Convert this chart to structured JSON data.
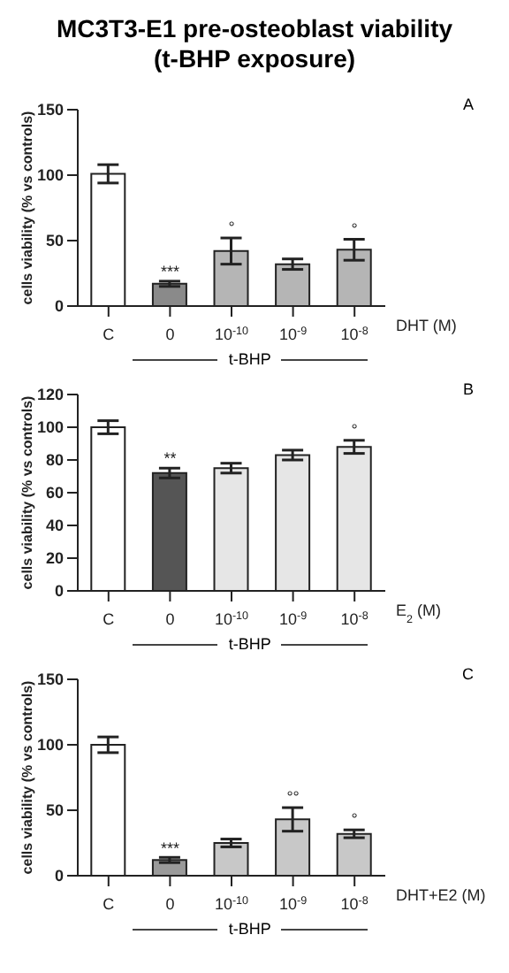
{
  "chart_data": [
    {
      "type": "bar",
      "title": "MC3T3-E1 pre-osteoblast viability (t-BHP exposure)",
      "ylabel": "cells viability (% vs controls)",
      "xlabel": "DHT (M)",
      "categories": [
        "C",
        "0",
        "10$^{-10}$",
        "10$^{-9}$",
        "10$^{-8}$"
      ],
      "values": [
        101,
        17,
        42,
        32,
        43
      ],
      "errors": [
        7,
        2,
        10,
        4,
        8
      ],
      "colors": [
        "#ffffff",
        "#8a8a8a",
        "#b5b5b5",
        "#b5b5b5",
        "#b5b5b5"
      ],
      "ylim": [
        0,
        150
      ],
      "yticks": [
        0,
        50,
        100,
        150
      ],
      "annotations": [
        {
          "text": "***",
          "x": "0",
          "y": 22
        },
        {
          "text": "°",
          "x": "10$^{-10}$",
          "y": 56
        },
        {
          "text": "°",
          "x": "10$^{-8}$",
          "y": 55
        },
        "A",
        "t-BHP"
      ]
    },
    {
      "type": "bar",
      "ylabel": "cells viability (% vs controls)",
      "xlabel": "E$_{2}$ (M)",
      "categories": [
        "C",
        "0",
        "10$^{-10}$",
        "10$^{-9}$",
        "10$^{-8}$"
      ],
      "values": [
        100,
        72,
        75,
        83,
        88
      ],
      "errors": [
        4,
        3,
        3,
        3,
        4
      ],
      "colors": [
        "#ffffff",
        "#555555",
        "#e6e6e6",
        "#e6e6e6",
        "#e6e6e6"
      ],
      "ylim": [
        0,
        120
      ],
      "yticks": [
        0,
        20,
        40,
        60,
        80,
        100,
        120
      ],
      "annotations": [
        {
          "text": "**",
          "x": "0",
          "y": 78
        },
        {
          "text": "°",
          "x": "10$^{-8}$",
          "y": 95
        },
        "B",
        "t-BHP"
      ]
    },
    {
      "type": "bar",
      "ylabel": "cells viability (% vs controls)",
      "xlabel": "DHT+E2 (M)",
      "categories": [
        "C",
        "0",
        "10$^{-10}$",
        "10$^{-9}$",
        "10$^{-8}$"
      ],
      "values": [
        100,
        12,
        25,
        43,
        32
      ],
      "errors": [
        6,
        2,
        3,
        9,
        3
      ],
      "colors": [
        "#ffffff",
        "#9a9a9a",
        "#c8c8c8",
        "#c8c8c8",
        "#c8c8c8"
      ],
      "ylim": [
        0,
        150
      ],
      "yticks": [
        0,
        50,
        100,
        150
      ],
      "annotations": [
        {
          "text": "***",
          "x": "0",
          "y": 17
        },
        {
          "text": "°°",
          "x": "10$^{-9}$",
          "y": 56
        },
        {
          "text": "°",
          "x": "10$^{-8}$",
          "y": 39
        },
        "C",
        "t-BHP"
      ]
    }
  ]
}
